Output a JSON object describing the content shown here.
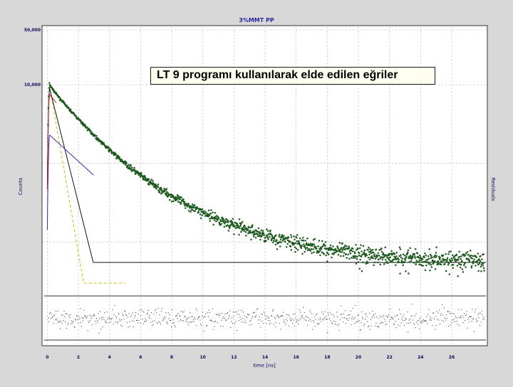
{
  "chart_data": {
    "type": "scatter",
    "title": "3%MMT PP",
    "xlabel": "time [ns]",
    "ylabel": "Counts",
    "y2label": "Residuals",
    "xlim": [
      -0.2,
      28.2
    ],
    "xticks": [
      0,
      2,
      4,
      6,
      8,
      10,
      12,
      14,
      16,
      18,
      20,
      22,
      24,
      26
    ],
    "ytick_labels": [
      {
        "label": "50,000",
        "value": 50000
      },
      {
        "label": "10,000",
        "value": 10000
      }
    ],
    "yscale": "log",
    "ylim": [
      30,
      50000
    ],
    "grid": true,
    "peak": {
      "x": 0.15,
      "y": 10500
    },
    "background_level": 55,
    "series": [
      {
        "role": "measured",
        "color": "#1d5a1d",
        "model": {
          "components": [
            {
              "amplitude": 7800,
              "tau": 1.7
            },
            {
              "amplitude": 1500,
              "tau": 4.4
            },
            {
              "amplitude": 700,
              "tau": 0.3
            }
          ],
          "background": 55
        }
      },
      {
        "role": "component",
        "color": "#d4b800",
        "style": "dashed",
        "model": {
          "amplitude": 9500,
          "tau": 0.38
        },
        "range": [
          0.0,
          5.0
        ]
      },
      {
        "role": "component",
        "color": "#111111",
        "style": "solid",
        "model": {
          "amplitude": 9000,
          "tau": 0.55
        },
        "range": [
          0.0,
          28.2
        ]
      },
      {
        "role": "component",
        "color": "#2a2ac8",
        "style": "solid",
        "model": {
          "amplitude": 2300,
          "tau": 2.4
        },
        "range": [
          0.0,
          3.0
        ]
      },
      {
        "role": "component",
        "color": "#d02020",
        "style": "solid",
        "model": {
          "amplitude": 7500,
          "tau": 1.8
        },
        "range": [
          0.0,
          0.6
        ]
      }
    ],
    "residuals": {
      "range": [
        -3,
        3
      ],
      "color": "#222222"
    }
  },
  "annotation": {
    "caption": "LT  9 programı kullanılarak elde edilen eğriler"
  }
}
